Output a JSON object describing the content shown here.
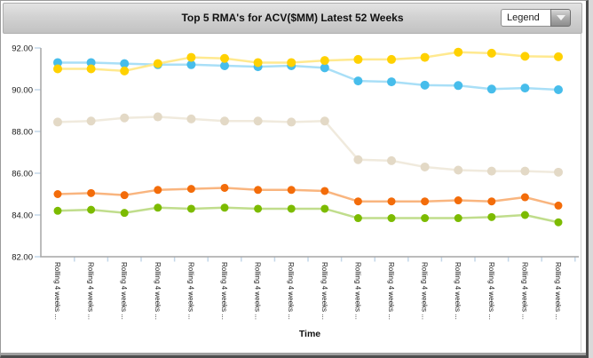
{
  "header": {
    "title": "Top 5 RMA's for ACV($MM) Latest 52 Weeks",
    "legend_label": "Legend"
  },
  "chart_data": {
    "type": "line",
    "title": "Top 5 RMA's for ACV($MM) Latest 52 Weeks",
    "xlabel": "Time",
    "ylabel": "",
    "ylim": [
      82,
      92
    ],
    "ytick_step": 2,
    "ytick_labels": [
      "92.00",
      "90.00",
      "88.00",
      "86.00",
      "84.00",
      "82.00"
    ],
    "grid": false,
    "legend_position": "collapsed-dropdown",
    "axis_color": "#a6a6a6",
    "tick_color": "#c3d7e9",
    "categories": [
      "Rolling 4 weeks ...",
      "Rolling 4 weeks ...",
      "Rolling 4 weeks ...",
      "Rolling 4 weeks ...",
      "Rolling 4 weeks ...",
      "Rolling 4 weeks ...",
      "Rolling 4 weeks ...",
      "Rolling 4 weeks ...",
      "Rolling 4 weeks ...",
      "Rolling 4 weeks ...",
      "Rolling 4 weeks ...",
      "Rolling 4 weeks ...",
      "Rolling 4 weeks ...",
      "Rolling 4 weeks ...",
      "Rolling 4 weeks ...",
      "Rolling 4 weeks ..."
    ],
    "series": [
      {
        "name": "blue",
        "color": "#47bdeb",
        "line_color": "#a9dff7",
        "values": [
          91.3,
          91.3,
          91.25,
          91.2,
          91.2,
          91.15,
          91.1,
          91.15,
          91.05,
          90.42,
          90.38,
          90.22,
          90.2,
          90.03,
          90.08,
          90.0
        ]
      },
      {
        "name": "yellow",
        "color": "#ffd100",
        "line_color": "#ffe98f",
        "values": [
          91.0,
          91.0,
          90.9,
          91.25,
          91.55,
          91.5,
          91.3,
          91.3,
          91.4,
          91.45,
          91.45,
          91.55,
          91.8,
          91.75,
          91.6,
          91.58
        ]
      },
      {
        "name": "tan",
        "color": "#e3d9c6",
        "line_color": "#f0eadd",
        "values": [
          88.45,
          88.5,
          88.65,
          88.7,
          88.6,
          88.5,
          88.5,
          88.45,
          88.5,
          86.65,
          86.6,
          86.3,
          86.15,
          86.1,
          86.1,
          86.05
        ]
      },
      {
        "name": "orange",
        "color": "#f36c0a",
        "line_color": "#f9b57f",
        "values": [
          85.0,
          85.05,
          84.95,
          85.2,
          85.25,
          85.3,
          85.2,
          85.2,
          85.15,
          84.65,
          84.65,
          84.65,
          84.7,
          84.65,
          84.85,
          84.45
        ]
      },
      {
        "name": "green",
        "color": "#7cbb00",
        "line_color": "#c0dd8c",
        "values": [
          84.2,
          84.25,
          84.1,
          84.35,
          84.3,
          84.35,
          84.3,
          84.3,
          84.3,
          83.85,
          83.85,
          83.85,
          83.85,
          83.9,
          84.0,
          83.65
        ]
      }
    ]
  }
}
